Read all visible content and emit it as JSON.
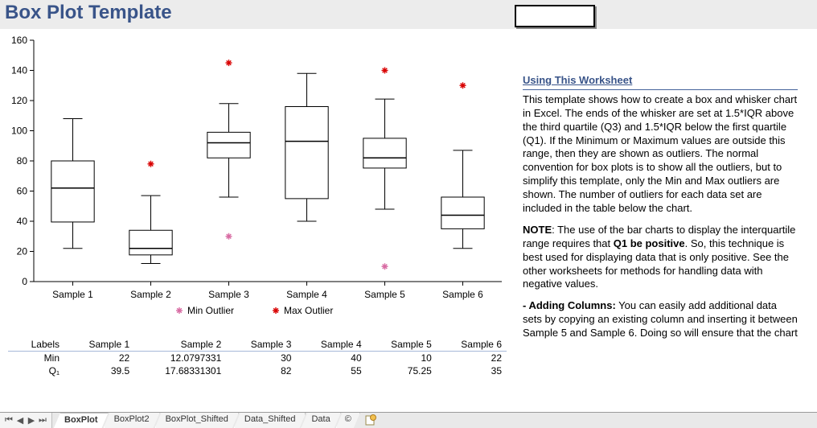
{
  "title": "Box Plot Template",
  "chart": {
    "type": "boxplot",
    "ylim": [
      0,
      160
    ],
    "ytick_step": 20,
    "label_fontsize": 12,
    "line_color": "#000000",
    "box_fill": "#ffffff",
    "outlier_min_color": "#d86ba3",
    "outlier_max_color": "#d90000",
    "legend": {
      "min": "Min Outlier",
      "max": "Max Outlier"
    },
    "series": [
      {
        "label": "Sample 1",
        "whisker_low": 22,
        "q1": 39.5,
        "median": 62,
        "q3": 80,
        "whisker_high": 108,
        "outlier_min": null,
        "outlier_max": null
      },
      {
        "label": "Sample 2",
        "whisker_low": 12,
        "q1": 17.68,
        "median": 22,
        "q3": 34,
        "whisker_high": 57,
        "outlier_min": null,
        "outlier_max": 78
      },
      {
        "label": "Sample 3",
        "whisker_low": 56,
        "q1": 82,
        "median": 92,
        "q3": 99,
        "whisker_high": 118,
        "outlier_min": 30,
        "outlier_max": 145
      },
      {
        "label": "Sample 4",
        "whisker_low": 40,
        "q1": 55,
        "median": 93,
        "q3": 116,
        "whisker_high": 138,
        "outlier_min": null,
        "outlier_max": null
      },
      {
        "label": "Sample 5",
        "whisker_low": 48,
        "q1": 75.25,
        "median": 82,
        "q3": 95,
        "whisker_high": 121,
        "outlier_min": 10,
        "outlier_max": 140
      },
      {
        "label": "Sample 6",
        "whisker_low": 22,
        "q1": 35,
        "median": 44,
        "q3": 56,
        "whisker_high": 87,
        "outlier_min": null,
        "outlier_max": 130
      }
    ]
  },
  "table": {
    "header_label": "Labels",
    "columns": [
      "Sample 1",
      "Sample 2",
      "Sample 3",
      "Sample 4",
      "Sample 5",
      "Sample 6"
    ],
    "rows": [
      {
        "label": "Min",
        "values": [
          "22",
          "12.0797331",
          "30",
          "40",
          "10",
          "22"
        ]
      },
      {
        "label": "Q₁",
        "values": [
          "39.5",
          "17.68331301",
          "82",
          "55",
          "75.25",
          "35"
        ]
      }
    ]
  },
  "info": {
    "heading": "Using This Worksheet",
    "para1": "This template shows how to create a box and whisker chart in Excel. The ends of the whisker are set at 1.5*IQR above the third quartile (Q3) and 1.5*IQR below the first quartile (Q1). If the Minimum or Maximum values are outside this range, then they are shown as outliers. The normal convention for box plots is to show all the outliers, but to simplify this template, only the Min and Max outliers are shown. The number of outliers for each data set are included in the table below the chart.",
    "note_label": "NOTE",
    "note_body1": ": The use of the bar charts to display the interquartile range requires that ",
    "note_bold": "Q1 be positive",
    "note_body2": ". So, this technique is best used for displaying data that is only positive. See the other worksheets for methods for handling data with negative values.",
    "adding_label": "- Adding Columns:",
    "adding_body": " You can easily add additional data sets by copying an existing column and inserting it between Sample 5 and Sample 6. Doing so will ensure that the chart"
  },
  "tabs": {
    "items": [
      "BoxPlot",
      "BoxPlot2",
      "BoxPlot_Shifted",
      "Data_Shifted",
      "Data",
      "©"
    ],
    "active": 0
  }
}
